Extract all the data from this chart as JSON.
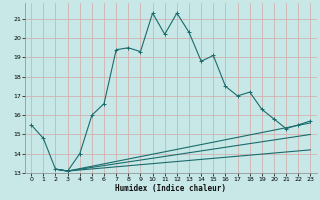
{
  "xlabel": "Humidex (Indice chaleur)",
  "xlim": [
    -0.5,
    23.5
  ],
  "ylim": [
    13,
    21.8
  ],
  "yticks": [
    13,
    14,
    15,
    16,
    17,
    18,
    19,
    20,
    21
  ],
  "xticks": [
    0,
    1,
    2,
    3,
    4,
    5,
    6,
    7,
    8,
    9,
    10,
    11,
    12,
    13,
    14,
    15,
    16,
    17,
    18,
    19,
    20,
    21,
    22,
    23
  ],
  "bg_color": "#c8e8e8",
  "grid_color": "#b0d4d4",
  "line_color": "#1a6b6b",
  "line1_x": [
    0,
    1,
    2,
    3,
    4,
    5,
    6,
    7,
    8,
    9,
    10,
    11,
    12,
    13,
    14,
    15,
    16,
    17,
    18,
    19,
    20,
    21,
    22,
    23
  ],
  "line1_y": [
    15.5,
    14.8,
    13.2,
    13.1,
    14.0,
    16.0,
    16.6,
    19.4,
    19.5,
    19.3,
    21.3,
    20.2,
    21.3,
    20.3,
    18.8,
    19.1,
    17.5,
    17.0,
    17.2,
    16.3,
    15.8,
    15.3,
    15.5,
    15.7
  ],
  "line2_x": [
    2,
    3,
    23
  ],
  "line2_y": [
    13.2,
    13.1,
    15.6
  ],
  "line3_x": [
    2,
    3,
    23
  ],
  "line3_y": [
    13.2,
    13.1,
    15.0
  ],
  "line4_x": [
    2,
    3,
    23
  ],
  "line4_y": [
    13.2,
    13.1,
    14.2
  ],
  "marker_size": 2.5,
  "line_width": 0.8
}
